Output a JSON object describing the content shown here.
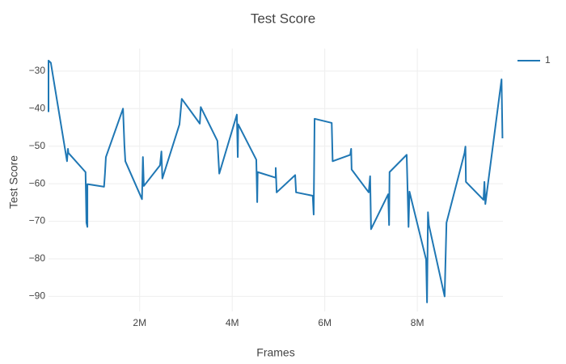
{
  "chart_data": {
    "type": "line",
    "title": "Test Score",
    "x_label": "Frames",
    "y_label": "Test Score",
    "x": [
      30000,
      30000,
      80000,
      430000,
      450000,
      460000,
      830000,
      850000,
      870000,
      870000,
      1230000,
      1250000,
      1270000,
      1640000,
      1670000,
      1690000,
      2050000,
      2070000,
      2090000,
      2440000,
      2470000,
      2490000,
      2860000,
      2910000,
      3300000,
      3320000,
      3680000,
      3720000,
      4100000,
      4120000,
      4130000,
      4520000,
      4540000,
      4550000,
      4940000,
      4940000,
      4960000,
      5360000,
      5380000,
      5740000,
      5760000,
      5780000,
      6150000,
      6170000,
      6550000,
      6570000,
      6580000,
      6950000,
      6980000,
      7000000,
      7370000,
      7390000,
      7400000,
      7770000,
      7810000,
      7830000,
      8190000,
      8210000,
      8230000,
      8250000,
      8590000,
      8610000,
      8630000,
      9020000,
      9040000,
      9050000,
      9430000,
      9450000,
      9470000,
      9820000,
      9840000
    ],
    "series": [
      {
        "name": "1",
        "color": "#1f77b4",
        "values": [
          -40.9,
          -27.2,
          -27.8,
          -54,
          -50.7,
          -51.8,
          -56.9,
          -70.4,
          -71.5,
          -60.1,
          -60.8,
          -57.3,
          -52.9,
          -40.0,
          -49.7,
          -54,
          -64.1,
          -52.9,
          -60.6,
          -55.1,
          -51.4,
          -58.6,
          -44.2,
          -37.4,
          -44.0,
          -39.6,
          -48.6,
          -57.3,
          -41.6,
          -52.9,
          -44.2,
          -53.6,
          -64.9,
          -56.9,
          -58.4,
          -55.8,
          -62.3,
          -57.7,
          -62.3,
          -63.2,
          -68.2,
          -42.7,
          -43.8,
          -54,
          -52.3,
          -50.7,
          -56.2,
          -62.3,
          -58.0,
          -72.1,
          -62.8,
          -71,
          -56.9,
          -52.3,
          -71.5,
          -62.1,
          -80.2,
          -91.6,
          -67.6,
          -71.0,
          -90,
          -80.2,
          -70.4,
          -51.8,
          -50.1,
          -59.5,
          -64.3,
          -59.5,
          -65.4,
          -32.2,
          -47.9
        ]
      }
    ],
    "xlim": [
      30000,
      9850000
    ],
    "xticks": [
      {
        "value": 2000000,
        "label": "2M"
      },
      {
        "value": 4000000,
        "label": "4M"
      },
      {
        "value": 6000000,
        "label": "6M"
      },
      {
        "value": 8000000,
        "label": "8M"
      }
    ],
    "ylim": [
      -94,
      -24
    ],
    "yticks": [
      {
        "value": -90,
        "label": "−90"
      },
      {
        "value": -80,
        "label": "−80"
      },
      {
        "value": -70,
        "label": "−70"
      },
      {
        "value": -60,
        "label": "−60"
      },
      {
        "value": -50,
        "label": "−50"
      },
      {
        "value": -40,
        "label": "−40"
      },
      {
        "value": -30,
        "label": "−30"
      }
    ],
    "grid": true,
    "legend": "top-right"
  }
}
